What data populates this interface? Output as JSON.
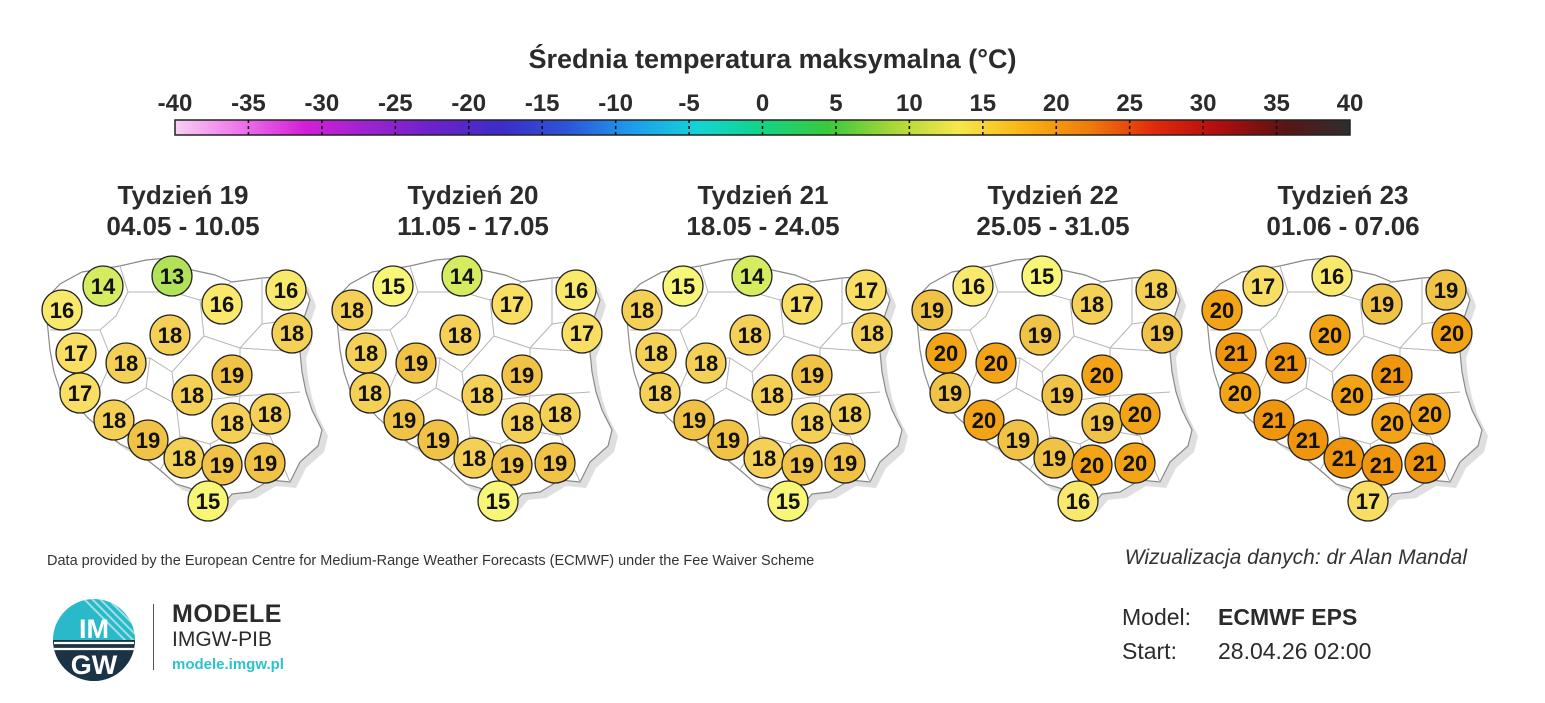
{
  "title": "Średnia temperatura maksymalna (°C)",
  "legend": {
    "ticks": [
      "-40",
      "-35",
      "-30",
      "-25",
      "-20",
      "-15",
      "-10",
      "-5",
      "0",
      "5",
      "10",
      "15",
      "20",
      "25",
      "30",
      "35",
      "40"
    ],
    "colors": [
      "#f8d0f3",
      "#ee74ea",
      "#d21fd7",
      "#9a23cf",
      "#6a22c9",
      "#3c2dc7",
      "#2d54d6",
      "#1e9cec",
      "#14d3d7",
      "#12d486",
      "#39c93b",
      "#a8d63a",
      "#f6e84a",
      "#f8b416",
      "#ee7c0c",
      "#e12a0a",
      "#b00d0d",
      "#5a1414",
      "#2e2e2e"
    ]
  },
  "weeks": [
    {
      "name": "Tydzień 19",
      "dates": "04.05 - 10.05",
      "values": [
        "14",
        "13",
        "16",
        "16",
        "16",
        "18",
        "18",
        "17",
        "18",
        "19",
        "17",
        "18",
        "18",
        "18",
        "18",
        "19",
        "18",
        "19",
        "19",
        "15"
      ]
    },
    {
      "name": "Tydzień 20",
      "dates": "11.05 - 17.05",
      "values": [
        "15",
        "14",
        "18",
        "17",
        "16",
        "18",
        "17",
        "18",
        "19",
        "19",
        "18",
        "18",
        "19",
        "18",
        "18",
        "19",
        "18",
        "19",
        "19",
        "15"
      ]
    },
    {
      "name": "Tydzień 21",
      "dates": "18.05 - 24.05",
      "values": [
        "15",
        "14",
        "18",
        "17",
        "17",
        "18",
        "18",
        "18",
        "18",
        "19",
        "18",
        "18",
        "19",
        "18",
        "18",
        "19",
        "18",
        "19",
        "19",
        "15"
      ]
    },
    {
      "name": "Tydzień 22",
      "dates": "25.05 - 31.05",
      "values": [
        "16",
        "15",
        "19",
        "18",
        "18",
        "19",
        "19",
        "20",
        "20",
        "20",
        "19",
        "19",
        "20",
        "19",
        "20",
        "19",
        "19",
        "20",
        "20",
        "16"
      ]
    },
    {
      "name": "Tydzień 23",
      "dates": "01.06 - 07.06",
      "values": [
        "17",
        "16",
        "20",
        "19",
        "19",
        "20",
        "20",
        "21",
        "21",
        "21",
        "20",
        "20",
        "21",
        "20",
        "20",
        "21",
        "21",
        "21",
        "21",
        "17"
      ]
    }
  ],
  "credit": "Data provided by the European Centre for Medium-Range Weather Forecasts (ECMWF) under the Fee Waiver Scheme",
  "visualization": "Wizualizacja danych: dr Alan Mandal",
  "branding": {
    "badge_top": "IM",
    "badge_bottom": "GW",
    "name": "MODELE",
    "org": "IMGW-PIB",
    "url": "modele.imgw.pl"
  },
  "model": {
    "model_label": "Model:",
    "model_value": "ECMWF EPS",
    "start_label": "Start:",
    "start_value": "28.04.26 02:00"
  }
}
